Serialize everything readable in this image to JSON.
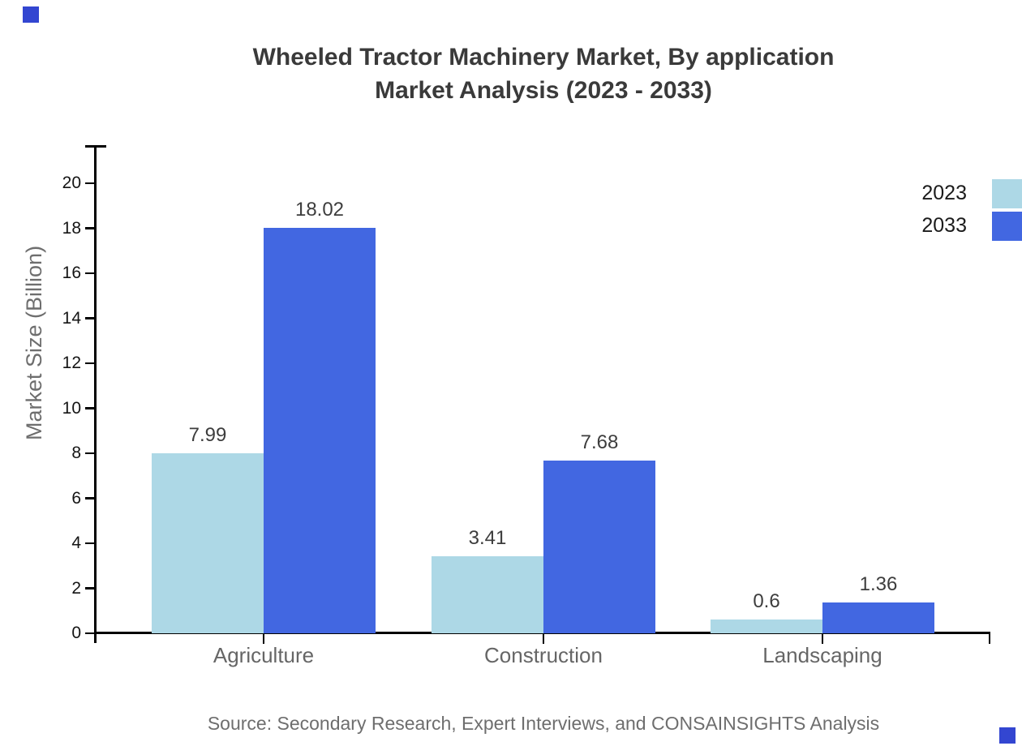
{
  "title": {
    "line1": "Wheeled Tractor Machinery Market, By application",
    "line2": "Market Analysis (2023 - 2033)"
  },
  "ylabel": "Market Size (Billion)",
  "source": "Source: Secondary Research, Expert Interviews, and CONSAINSIGHTS Analysis",
  "legend": [
    {
      "label": "2023",
      "color": "#add8e6"
    },
    {
      "label": "2033",
      "color": "#4267e1"
    }
  ],
  "colors": {
    "bar_2023": "#add8e6",
    "bar_2033": "#4267e1",
    "corner_accent": "#3346d1",
    "axis": "#000000",
    "title_text": "#3a3a3a",
    "muted_text": "#6e6e6e"
  },
  "chart_data": {
    "type": "bar",
    "title": "Wheeled Tractor Machinery Market, By application Market Analysis (2023 - 2033)",
    "categories": [
      "Agriculture",
      "Construction",
      "Landscaping"
    ],
    "series": [
      {
        "name": "2023",
        "color": "#add8e6",
        "values": [
          7.99,
          3.41,
          0.6
        ],
        "value_labels": [
          "7.99",
          "3.41",
          "0.6"
        ]
      },
      {
        "name": "2033",
        "color": "#4267e1",
        "values": [
          18.02,
          7.68,
          1.36
        ],
        "value_labels": [
          "18.02",
          "7.68",
          "1.36"
        ]
      }
    ],
    "xlabel": "",
    "ylabel": "Market Size (Billion)",
    "ylim": [
      0,
      20
    ],
    "yticks": [
      0,
      2,
      4,
      6,
      8,
      10,
      12,
      14,
      16,
      18,
      20
    ],
    "grid": false,
    "legend_position": "top-right"
  }
}
